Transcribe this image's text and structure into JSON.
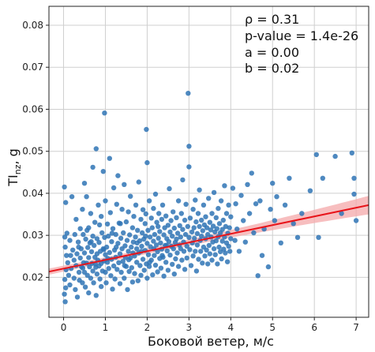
{
  "chart_data": {
    "type": "scatter",
    "xlabel": "Боковой ветер, м/с",
    "ylabel_main": "TI",
    "ylabel_sub": "nz",
    "ylabel_unit": ", g",
    "xlim": [
      -0.35,
      7.3
    ],
    "ylim": [
      0.0105,
      0.0845
    ],
    "xticks": [
      0,
      1,
      2,
      3,
      4,
      5,
      6,
      7
    ],
    "yticks": [
      0.02,
      0.03,
      0.04,
      0.05,
      0.06,
      0.07,
      0.08
    ],
    "grid": true,
    "annotations": [
      "ρ = 0.31",
      "p-value = 1.4e-26",
      "a = 0.00",
      "b = 0.02"
    ],
    "regression": {
      "intercept": 0.02208,
      "slope": 0.00207,
      "x_range": [
        -0.35,
        7.3
      ],
      "ci_halfwidth_center": 0.0006,
      "ci_halfwidth_edge": 0.0022,
      "ci_center_x": 1.4
    },
    "colors": {
      "points": "#2f74b5",
      "line": "#e8141a",
      "ci": "#f4a8aa",
      "grid": "#cfcfcf"
    },
    "points": [
      [
        0.02,
        0.0415
      ],
      [
        0.05,
        0.0378
      ],
      [
        0.03,
        0.0296
      ],
      [
        0.04,
        0.0272
      ],
      [
        0.06,
        0.0218
      ],
      [
        0.03,
        0.0195
      ],
      [
        0.05,
        0.0175
      ],
      [
        0.02,
        0.016
      ],
      [
        0.04,
        0.0142
      ],
      [
        0.07,
        0.0252
      ],
      [
        0.1,
        0.0235
      ],
      [
        0.12,
        0.0205
      ],
      [
        0.15,
        0.0288
      ],
      [
        0.15,
        0.0182
      ],
      [
        0.18,
        0.0221
      ],
      [
        0.2,
        0.0392
      ],
      [
        0.22,
        0.0265
      ],
      [
        0.25,
        0.0241
      ],
      [
        0.25,
        0.0198
      ],
      [
        0.28,
        0.0171
      ],
      [
        0.3,
        0.0338
      ],
      [
        0.3,
        0.0228
      ],
      [
        0.32,
        0.0256
      ],
      [
        0.33,
        0.0153
      ],
      [
        0.35,
        0.0284
      ],
      [
        0.37,
        0.0212
      ],
      [
        0.38,
        0.0193
      ],
      [
        0.4,
        0.0316
      ],
      [
        0.4,
        0.0246
      ],
      [
        0.42,
        0.0268
      ],
      [
        0.43,
        0.0225
      ],
      [
        0.45,
        0.0362
      ],
      [
        0.45,
        0.0187
      ],
      [
        0.47,
        0.0302
      ],
      [
        0.48,
        0.0235
      ],
      [
        0.5,
        0.0424
      ],
      [
        0.5,
        0.0258
      ],
      [
        0.5,
        0.0212
      ],
      [
        0.52,
        0.0177
      ],
      [
        0.53,
        0.0291
      ],
      [
        0.55,
        0.0234
      ],
      [
        0.55,
        0.0392
      ],
      [
        0.57,
        0.0205
      ],
      [
        0.58,
        0.0271
      ],
      [
        0.6,
        0.0318
      ],
      [
        0.6,
        0.0247
      ],
      [
        0.6,
        0.0163
      ],
      [
        0.62,
        0.0225
      ],
      [
        0.63,
        0.0282
      ],
      [
        0.65,
        0.0352
      ],
      [
        0.65,
        0.0198
      ],
      [
        0.67,
        0.0261
      ],
      [
        0.68,
        0.0233
      ],
      [
        0.7,
        0.0462
      ],
      [
        0.7,
        0.0298
      ],
      [
        0.7,
        0.0215
      ],
      [
        0.72,
        0.0187
      ],
      [
        0.73,
        0.0276
      ],
      [
        0.75,
        0.0248
      ],
      [
        0.75,
        0.0331
      ],
      [
        0.77,
        0.0224
      ],
      [
        0.78,
        0.0506
      ],
      [
        0.78,
        0.0157
      ],
      [
        0.8,
        0.0292
      ],
      [
        0.8,
        0.0256
      ],
      [
        0.8,
        0.0208
      ],
      [
        0.82,
        0.0241
      ],
      [
        0.83,
        0.0372
      ],
      [
        0.85,
        0.0227
      ],
      [
        0.85,
        0.0283
      ],
      [
        0.87,
        0.0196
      ],
      [
        0.88,
        0.0262
      ],
      [
        0.9,
        0.0345
      ],
      [
        0.9,
        0.0233
      ],
      [
        0.9,
        0.0178
      ],
      [
        0.92,
        0.0306
      ],
      [
        0.93,
        0.0215
      ],
      [
        0.95,
        0.0268
      ],
      [
        0.95,
        0.0452
      ],
      [
        0.97,
        0.0239
      ],
      [
        0.98,
        0.0591
      ],
      [
        0.98,
        0.0295
      ],
      [
        1.0,
        0.0254
      ],
      [
        1.0,
        0.0212
      ],
      [
        1.0,
        0.0382
      ],
      [
        1.02,
        0.0187
      ],
      [
        1.03,
        0.0272
      ],
      [
        1.05,
        0.0327
      ],
      [
        1.05,
        0.0236
      ],
      [
        1.07,
        0.0298
      ],
      [
        1.08,
        0.0221
      ],
      [
        1.1,
        0.0483
      ],
      [
        1.1,
        0.0259
      ],
      [
        1.12,
        0.0354
      ],
      [
        1.13,
        0.0204
      ],
      [
        1.15,
        0.0285
      ],
      [
        1.15,
        0.0243
      ],
      [
        1.17,
        0.0172
      ],
      [
        1.18,
        0.0316
      ],
      [
        1.2,
        0.0227
      ],
      [
        1.2,
        0.0413
      ],
      [
        1.22,
        0.0265
      ],
      [
        1.23,
        0.0196
      ],
      [
        1.25,
        0.0302
      ],
      [
        1.25,
        0.0248
      ],
      [
        1.27,
        0.0374
      ],
      [
        1.28,
        0.0219
      ],
      [
        1.3,
        0.0281
      ],
      [
        1.3,
        0.0442
      ],
      [
        1.32,
        0.0235
      ],
      [
        1.33,
        0.0329
      ],
      [
        1.35,
        0.0256
      ],
      [
        1.35,
        0.0185
      ],
      [
        1.37,
        0.0293
      ],
      [
        1.38,
        0.0212
      ],
      [
        1.4,
        0.0362
      ],
      [
        1.4,
        0.0268
      ],
      [
        1.42,
        0.0238
      ],
      [
        1.43,
        0.0306
      ],
      [
        1.45,
        0.0198
      ],
      [
        1.45,
        0.0421
      ],
      [
        1.47,
        0.0275
      ],
      [
        1.48,
        0.0247
      ],
      [
        1.5,
        0.0332
      ],
      [
        1.5,
        0.0226
      ],
      [
        1.52,
        0.0288
      ],
      [
        1.53,
        0.0171
      ],
      [
        1.55,
        0.0356
      ],
      [
        1.55,
        0.0262
      ],
      [
        1.57,
        0.0214
      ],
      [
        1.58,
        0.0301
      ],
      [
        1.6,
        0.0393
      ],
      [
        1.6,
        0.0246
      ],
      [
        1.62,
        0.0272
      ],
      [
        1.63,
        0.0223
      ],
      [
        1.65,
        0.0318
      ],
      [
        1.65,
        0.0189
      ],
      [
        1.67,
        0.0284
      ],
      [
        1.68,
        0.0345
      ],
      [
        1.7,
        0.0251
      ],
      [
        1.7,
        0.0209
      ],
      [
        1.72,
        0.0296
      ],
      [
        1.73,
        0.0372
      ],
      [
        1.75,
        0.0236
      ],
      [
        1.75,
        0.0268
      ],
      [
        1.77,
        0.0312
      ],
      [
        1.78,
        0.0192
      ],
      [
        1.8,
        0.0427
      ],
      [
        1.8,
        0.0258
      ],
      [
        1.82,
        0.0287
      ],
      [
        1.83,
        0.0228
      ],
      [
        1.85,
        0.0338
      ],
      [
        1.85,
        0.0205
      ],
      [
        1.87,
        0.0274
      ],
      [
        1.88,
        0.0306
      ],
      [
        1.9,
        0.0361
      ],
      [
        1.9,
        0.0243
      ],
      [
        1.92,
        0.0291
      ],
      [
        1.93,
        0.0217
      ],
      [
        1.95,
        0.0328
      ],
      [
        1.95,
        0.0264
      ],
      [
        1.97,
        0.0351
      ],
      [
        1.98,
        0.0552
      ],
      [
        1.98,
        0.0232
      ],
      [
        2.0,
        0.0473
      ],
      [
        2.0,
        0.0281
      ],
      [
        2.0,
        0.0198
      ],
      [
        2.02,
        0.0312
      ],
      [
        2.03,
        0.0254
      ],
      [
        2.05,
        0.0382
      ],
      [
        2.05,
        0.0226
      ],
      [
        2.07,
        0.0296
      ],
      [
        2.08,
        0.0273
      ],
      [
        2.1,
        0.0341
      ],
      [
        2.1,
        0.0241
      ],
      [
        2.12,
        0.0318
      ],
      [
        2.13,
        0.0206
      ],
      [
        2.15,
        0.0364
      ],
      [
        2.15,
        0.0286
      ],
      [
        2.17,
        0.0252
      ],
      [
        2.18,
        0.0302
      ],
      [
        2.2,
        0.0398
      ],
      [
        2.2,
        0.0229
      ],
      [
        2.22,
        0.0277
      ],
      [
        2.23,
        0.0331
      ],
      [
        2.25,
        0.0261
      ],
      [
        2.25,
        0.0213
      ],
      [
        2.27,
        0.0293
      ],
      [
        2.28,
        0.0352
      ],
      [
        2.3,
        0.0245
      ],
      [
        2.3,
        0.0309
      ],
      [
        2.32,
        0.0282
      ],
      [
        2.33,
        0.0222
      ],
      [
        2.35,
        0.0338
      ],
      [
        2.35,
        0.0267
      ],
      [
        2.37,
        0.0372
      ],
      [
        2.38,
        0.0248
      ],
      [
        2.4,
        0.0301
      ],
      [
        2.4,
        0.0203
      ],
      [
        2.42,
        0.0318
      ],
      [
        2.43,
        0.0276
      ],
      [
        2.45,
        0.0346
      ],
      [
        2.45,
        0.0236
      ],
      [
        2.47,
        0.0292
      ],
      [
        2.48,
        0.0263
      ],
      [
        2.5,
        0.0324
      ],
      [
        2.5,
        0.0217
      ],
      [
        2.52,
        0.0285
      ],
      [
        2.53,
        0.0411
      ],
      [
        2.55,
        0.0253
      ],
      [
        2.55,
        0.0308
      ],
      [
        2.57,
        0.0335
      ],
      [
        2.58,
        0.0274
      ],
      [
        2.6,
        0.0231
      ],
      [
        2.6,
        0.0298
      ],
      [
        2.62,
        0.0356
      ],
      [
        2.63,
        0.0268
      ],
      [
        2.65,
        0.0317
      ],
      [
        2.65,
        0.0208
      ],
      [
        2.67,
        0.0283
      ],
      [
        2.68,
        0.0244
      ],
      [
        2.7,
        0.0342
      ],
      [
        2.7,
        0.0291
      ],
      [
        2.72,
        0.0258
      ],
      [
        2.73,
        0.0305
      ],
      [
        2.75,
        0.0382
      ],
      [
        2.75,
        0.0226
      ],
      [
        2.77,
        0.0277
      ],
      [
        2.78,
        0.0323
      ],
      [
        2.8,
        0.0268
      ],
      [
        2.8,
        0.0296
      ],
      [
        2.82,
        0.0352
      ],
      [
        2.83,
        0.0241
      ],
      [
        2.85,
        0.0314
      ],
      [
        2.85,
        0.0432
      ],
      [
        2.87,
        0.0284
      ],
      [
        2.88,
        0.0262
      ],
      [
        2.9,
        0.0336
      ],
      [
        2.9,
        0.0219
      ],
      [
        2.92,
        0.0302
      ],
      [
        2.93,
        0.0374
      ],
      [
        2.95,
        0.0274
      ],
      [
        2.95,
        0.0246
      ],
      [
        2.97,
        0.0321
      ],
      [
        2.98,
        0.0638
      ],
      [
        3.0,
        0.0512
      ],
      [
        3.0,
        0.0463
      ],
      [
        3.0,
        0.0295
      ],
      [
        3.02,
        0.0266
      ],
      [
        3.03,
        0.0341
      ],
      [
        3.05,
        0.0228
      ],
      [
        3.07,
        0.0308
      ],
      [
        3.08,
        0.0282
      ],
      [
        3.1,
        0.0362
      ],
      [
        3.1,
        0.0251
      ],
      [
        3.12,
        0.0318
      ],
      [
        3.13,
        0.0293
      ],
      [
        3.15,
        0.0384
      ],
      [
        3.15,
        0.0262
      ],
      [
        3.17,
        0.0332
      ],
      [
        3.18,
        0.0215
      ],
      [
        3.2,
        0.0304
      ],
      [
        3.2,
        0.0277
      ],
      [
        3.22,
        0.0352
      ],
      [
        3.23,
        0.0243
      ],
      [
        3.25,
        0.0321
      ],
      [
        3.25,
        0.0408
      ],
      [
        3.27,
        0.0288
      ],
      [
        3.28,
        0.0262
      ],
      [
        3.3,
        0.0336
      ],
      [
        3.3,
        0.0298
      ],
      [
        3.32,
        0.0234
      ],
      [
        3.33,
        0.0311
      ],
      [
        3.35,
        0.0372
      ],
      [
        3.35,
        0.0272
      ],
      [
        3.37,
        0.0325
      ],
      [
        3.38,
        0.0251
      ],
      [
        3.4,
        0.0292
      ],
      [
        3.4,
        0.0344
      ],
      [
        3.42,
        0.0265
      ],
      [
        3.43,
        0.0318
      ],
      [
        3.45,
        0.0232
      ],
      [
        3.45,
        0.0302
      ],
      [
        3.47,
        0.0388
      ],
      [
        3.48,
        0.0276
      ],
      [
        3.5,
        0.0331
      ],
      [
        3.5,
        0.0256
      ],
      [
        3.52,
        0.0313
      ],
      [
        3.53,
        0.0296
      ],
      [
        3.55,
        0.0352
      ],
      [
        3.55,
        0.0241
      ],
      [
        3.57,
        0.0284
      ],
      [
        3.58,
        0.0322
      ],
      [
        3.6,
        0.0268
      ],
      [
        3.6,
        0.0402
      ],
      [
        3.62,
        0.0308
      ],
      [
        3.63,
        0.0254
      ],
      [
        3.65,
        0.0342
      ],
      [
        3.65,
        0.0287
      ],
      [
        3.67,
        0.0316
      ],
      [
        3.68,
        0.0232
      ],
      [
        3.7,
        0.0297
      ],
      [
        3.7,
        0.0364
      ],
      [
        3.72,
        0.0272
      ],
      [
        3.73,
        0.0328
      ],
      [
        3.75,
        0.0261
      ],
      [
        3.75,
        0.0306
      ],
      [
        3.77,
        0.0382
      ],
      [
        3.78,
        0.0244
      ],
      [
        3.8,
        0.0314
      ],
      [
        3.8,
        0.0286
      ],
      [
        3.82,
        0.0336
      ],
      [
        3.83,
        0.0267
      ],
      [
        3.85,
        0.0296
      ],
      [
        3.85,
        0.0418
      ],
      [
        3.87,
        0.0258
      ],
      [
        3.88,
        0.0321
      ],
      [
        3.9,
        0.0282
      ],
      [
        3.9,
        0.0352
      ],
      [
        3.92,
        0.0237
      ],
      [
        3.93,
        0.0305
      ],
      [
        3.95,
        0.0372
      ],
      [
        3.95,
        0.0274
      ],
      [
        3.97,
        0.0318
      ],
      [
        3.98,
        0.0262
      ],
      [
        4.0,
        0.0344
      ],
      [
        4.0,
        0.0292
      ],
      [
        4.05,
        0.0412
      ],
      [
        4.1,
        0.0288
      ],
      [
        4.12,
        0.0375
      ],
      [
        4.15,
        0.0315
      ],
      [
        4.2,
        0.0262
      ],
      [
        4.25,
        0.0395
      ],
      [
        4.3,
        0.0335
      ],
      [
        4.35,
        0.0284
      ],
      [
        4.4,
        0.0421
      ],
      [
        4.45,
        0.0352
      ],
      [
        4.5,
        0.0448
      ],
      [
        4.55,
        0.0306
      ],
      [
        4.6,
        0.0375
      ],
      [
        4.65,
        0.0204
      ],
      [
        4.7,
        0.0382
      ],
      [
        4.75,
        0.0252
      ],
      [
        4.8,
        0.0315
      ],
      [
        4.9,
        0.0225
      ],
      [
        4.95,
        0.0362
      ],
      [
        5.0,
        0.0424
      ],
      [
        5.05,
        0.0335
      ],
      [
        5.1,
        0.0392
      ],
      [
        5.2,
        0.0282
      ],
      [
        5.3,
        0.0372
      ],
      [
        5.4,
        0.0436
      ],
      [
        5.5,
        0.0328
      ],
      [
        5.6,
        0.0295
      ],
      [
        5.7,
        0.0352
      ],
      [
        5.9,
        0.0406
      ],
      [
        6.05,
        0.0492
      ],
      [
        6.1,
        0.0295
      ],
      [
        6.2,
        0.0436
      ],
      [
        6.5,
        0.0488
      ],
      [
        6.65,
        0.0352
      ],
      [
        6.9,
        0.0496
      ],
      [
        6.95,
        0.0436
      ],
      [
        7.0,
        0.0335
      ],
      [
        6.95,
        0.0398
      ],
      [
        0.08,
        0.0305
      ],
      [
        0.17,
        0.0252
      ],
      [
        0.27,
        0.0302
      ],
      [
        0.36,
        0.0272
      ],
      [
        0.46,
        0.0222
      ],
      [
        0.56,
        0.0312
      ],
      [
        0.66,
        0.0285
      ],
      [
        0.76,
        0.0232
      ],
      [
        0.86,
        0.0325
      ],
      [
        0.96,
        0.0266
      ],
      [
        1.06,
        0.0245
      ],
      [
        1.16,
        0.0305
      ],
      [
        1.26,
        0.0272
      ],
      [
        1.36,
        0.0328
      ],
      [
        1.46,
        0.0228
      ],
      [
        1.56,
        0.0242
      ],
      [
        1.66,
        0.0258
      ],
      [
        1.76,
        0.0282
      ],
      [
        1.86,
        0.0262
      ],
      [
        1.96,
        0.0298
      ],
      [
        2.06,
        0.0236
      ],
      [
        2.16,
        0.0268
      ],
      [
        2.26,
        0.0321
      ],
      [
        2.36,
        0.0252
      ],
      [
        2.46,
        0.0276
      ]
    ]
  }
}
